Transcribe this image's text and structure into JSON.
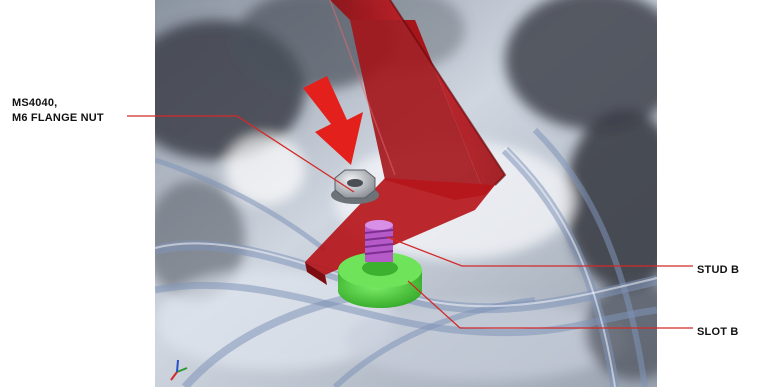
{
  "callouts": {
    "nut": {
      "line1": "MS4040,",
      "line2": "M6 FLANGE NUT"
    },
    "stud": {
      "label": "STUD B"
    },
    "slot": {
      "label": "SLOT B"
    }
  },
  "colors": {
    "bracket": "#b5161b",
    "arrow": "#e3201b",
    "stud": "#b65ac9",
    "slot_block": "#4ccf3a",
    "nut": "#c9cdd2",
    "leader_line": "#d22a2a",
    "callout_text": "#111111"
  },
  "icons": {
    "triad": "coordinate-triad-icon",
    "arrow": "installation-arrow-icon"
  }
}
